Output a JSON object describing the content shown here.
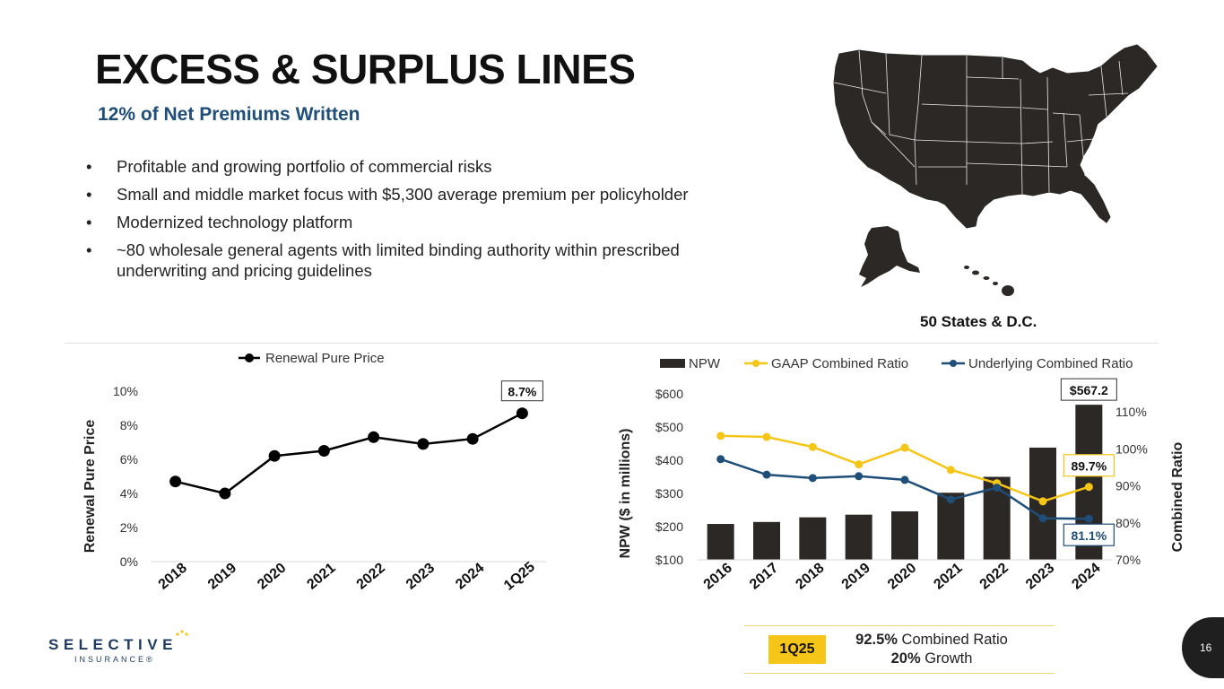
{
  "header": {
    "title": "EXCESS & SURPLUS LINES",
    "subtitle": "12% of Net Premiums Written"
  },
  "bullets": [
    "Profitable and growing portfolio of commercial risks",
    "Small and middle market focus with $5,300 average premium per policyholder",
    "Modernized technology platform",
    "~80 wholesale general agents with limited binding authority within prescribed underwriting and pricing guidelines"
  ],
  "map": {
    "label": "50 States & D.C.",
    "icon": "us-map-icon"
  },
  "callout": {
    "badge": "1Q25",
    "combined_ratio_value": "92.5%",
    "combined_ratio_label": " Combined Ratio",
    "growth_value": "20%",
    "growth_label": " Growth"
  },
  "logo": {
    "name": "SELECTIVE",
    "sub": "INSURANCE®"
  },
  "page": {
    "number": "16"
  },
  "colors": {
    "black_series": "#000000",
    "npw_bar": "#2b2825",
    "gaap": "#f5c518",
    "underlying": "#1f4e79",
    "title_blue": "#1f4e79"
  },
  "chart_data": [
    {
      "type": "line",
      "legend": [
        "Renewal Pure Price"
      ],
      "legend_position": "top",
      "categories": [
        "2018",
        "2019",
        "2020",
        "2021",
        "2022",
        "2023",
        "2024",
        "1Q25"
      ],
      "series": [
        {
          "name": "Renewal Pure Price",
          "values": [
            4.7,
            4.0,
            6.2,
            6.5,
            7.3,
            6.9,
            7.2,
            8.7
          ]
        }
      ],
      "ylabel": "Renewal Pure Price",
      "ylim": [
        0,
        10
      ],
      "yticks": [
        "0%",
        "2%",
        "4%",
        "6%",
        "8%",
        "10%"
      ],
      "data_label": "8.7%"
    },
    {
      "type": "bar",
      "legend": [
        "NPW",
        "GAAP Combined Ratio",
        "Underlying Combined Ratio"
      ],
      "legend_position": "top",
      "categories": [
        "2016",
        "2017",
        "2018",
        "2019",
        "2020",
        "2021",
        "2022",
        "2023",
        "2024"
      ],
      "series": [
        {
          "name": "NPW",
          "type": "bar",
          "axis": "left",
          "values": [
            208,
            214,
            228,
            236,
            246,
            302,
            350,
            438,
            567.2
          ]
        },
        {
          "name": "GAAP Combined Ratio",
          "type": "line",
          "axis": "right",
          "values": [
            103.5,
            103.2,
            100.5,
            95.8,
            100.3,
            94.3,
            90.7,
            85.8,
            89.7
          ]
        },
        {
          "name": "Underlying Combined Ratio",
          "type": "line",
          "axis": "right",
          "values": [
            97.2,
            93.0,
            92.1,
            92.6,
            91.6,
            86.3,
            89.5,
            81.2,
            81.1
          ]
        }
      ],
      "ylabel": "NPW ($ in millions)",
      "ylim": [
        100,
        600
      ],
      "yticks": [
        "$100",
        "$200",
        "$300",
        "$400",
        "$500",
        "$600"
      ],
      "y2label": "Combined Ratio",
      "y2lim": [
        70,
        110
      ],
      "y2ticks": [
        "70%",
        "80%",
        "90%",
        "100%",
        "110%"
      ],
      "data_labels": {
        "npw_last": "$567.2",
        "gaap_last": "89.7%",
        "underlying_last": "81.1%"
      }
    }
  ]
}
